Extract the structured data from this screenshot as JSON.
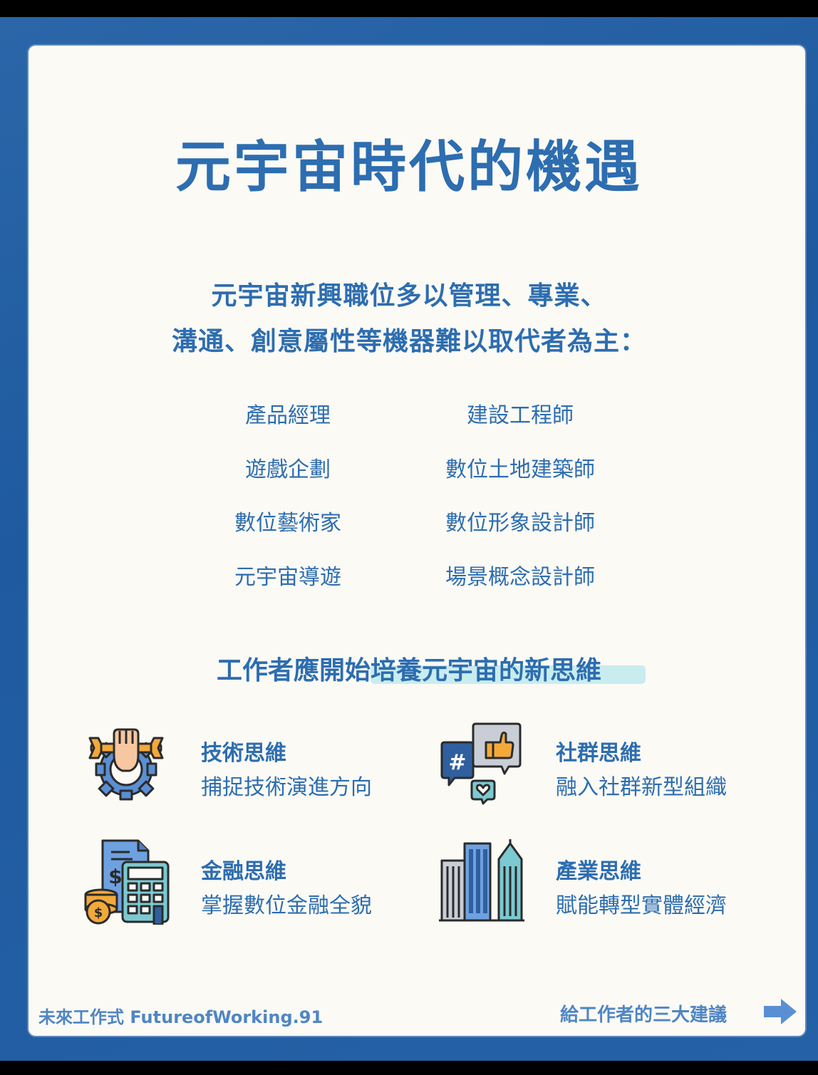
{
  "title": "元宇宙時代的機遇",
  "intro": {
    "line1": "元宇宙新興職位多以管理、專業、",
    "line2": "溝通、創意屬性等機器難以取代者為主："
  },
  "jobs": {
    "left": [
      "產品經理",
      "遊戲企劃",
      "數位藝術家",
      "元宇宙導遊"
    ],
    "right": [
      "建設工程師",
      "數位土地建築師",
      "數位形象設計師",
      "場景概念設計師"
    ]
  },
  "subheading": "工作者應開始培養元宇宙的新思維",
  "mindsets": [
    {
      "title": "技術思維",
      "desc": "捕捉技術演進方向",
      "icon": "wrench-gear-fist-icon"
    },
    {
      "title": "社群思維",
      "desc": "融入社群新型組織",
      "icon": "social-chat-bubbles-icon"
    },
    {
      "title": "金融思維",
      "desc": "掌握數位金融全貌",
      "icon": "calculator-coins-icon"
    },
    {
      "title": "產業思維",
      "desc": "賦能轉型實體經濟",
      "icon": "city-buildings-icon"
    }
  ],
  "footer": {
    "brand": "未來工作式 FutureofWorking.91",
    "next": "給工作者的三大建議",
    "arrow_icon": "right-arrow-icon"
  },
  "colors": {
    "primary": "#2d6db0",
    "background": "#1f5aa0",
    "card": "#fbfaf5",
    "highlight": "#c9ecef"
  }
}
